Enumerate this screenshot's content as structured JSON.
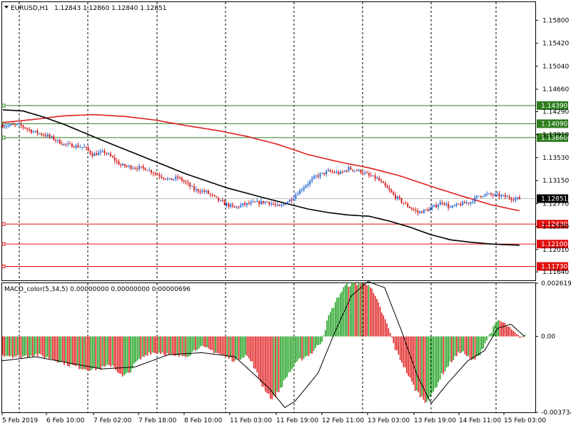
{
  "header": {
    "symbol": "EURUSD,H1",
    "ohlc": "1.12843 1.12860 1.12840 1.12851"
  },
  "macd": {
    "label": "MACD_color(5,34,5) 0.00000000 0.00000000 0.00000696"
  },
  "colors": {
    "bull": "#2a6bd6",
    "bear": "#d42020",
    "ma_fast": "#e02020",
    "ma_slow": "#000000",
    "level_green": "#2e7d1e",
    "level_red": "#e01010",
    "macd_up": "#20a020",
    "macd_down": "#e02020",
    "grid": "#000000"
  },
  "chart_data": [
    {
      "type": "candlestick",
      "title": "EURUSD,H1",
      "y_ticks": [
        "1.15800",
        "1.15420",
        "1.15040",
        "1.14660",
        "1.14290",
        "1.13910",
        "1.13530",
        "1.13150",
        "1.12770",
        "1.12390",
        "1.12010",
        "1.11640"
      ],
      "ylim": [
        1.115,
        1.161
      ],
      "x_ticks": [
        "5 Feb 2019",
        "6 Feb 10:00",
        "7 Feb 02:00",
        "7 Feb 18:00",
        "8 Feb 10:00",
        "11 Feb 03:00",
        "11 Feb 19:00",
        "12 Feb 11:00",
        "13 Feb 03:00",
        "13 Feb 19:00",
        "14 Feb 11:00",
        "15 Feb 03:00"
      ],
      "price_anchors": [
        [
          0,
          1.1406
        ],
        [
          8,
          1.1407
        ],
        [
          14,
          1.1397
        ],
        [
          22,
          1.1389
        ],
        [
          30,
          1.1375
        ],
        [
          40,
          1.137
        ],
        [
          44,
          1.1358
        ],
        [
          50,
          1.1362
        ],
        [
          54,
          1.1352
        ],
        [
          58,
          1.134
        ],
        [
          64,
          1.1337
        ],
        [
          70,
          1.1335
        ],
        [
          76,
          1.1325
        ],
        [
          82,
          1.1316
        ],
        [
          86,
          1.132
        ],
        [
          90,
          1.1311
        ],
        [
          94,
          1.13
        ],
        [
          100,
          1.1296
        ],
        [
          108,
          1.1278
        ],
        [
          114,
          1.127
        ],
        [
          118,
          1.1275
        ],
        [
          124,
          1.1278
        ],
        [
          130,
          1.128
        ],
        [
          136,
          1.1271
        ],
        [
          142,
          1.1285
        ],
        [
          148,
          1.1305
        ],
        [
          154,
          1.1322
        ],
        [
          160,
          1.133
        ],
        [
          166,
          1.1327
        ],
        [
          170,
          1.1335
        ],
        [
          176,
          1.133
        ],
        [
          180,
          1.1323
        ],
        [
          184,
          1.1318
        ],
        [
          188,
          1.1305
        ],
        [
          192,
          1.1291
        ],
        [
          198,
          1.1275
        ],
        [
          204,
          1.1262
        ],
        [
          210,
          1.1268
        ],
        [
          216,
          1.128
        ],
        [
          220,
          1.127
        ],
        [
          224,
          1.1275
        ],
        [
          230,
          1.128
        ],
        [
          234,
          1.129
        ],
        [
          238,
          1.1292
        ],
        [
          244,
          1.129
        ],
        [
          250,
          1.1286
        ],
        [
          254,
          1.1285
        ]
      ],
      "ma_slow": [
        [
          0,
          1.1432
        ],
        [
          10,
          1.143
        ],
        [
          20,
          1.142
        ],
        [
          30,
          1.1408
        ],
        [
          50,
          1.138
        ],
        [
          70,
          1.1353
        ],
        [
          90,
          1.1326
        ],
        [
          110,
          1.1303
        ],
        [
          130,
          1.1285
        ],
        [
          150,
          1.1268
        ],
        [
          160,
          1.1262
        ],
        [
          170,
          1.1258
        ],
        [
          180,
          1.1256
        ],
        [
          190,
          1.1248
        ],
        [
          200,
          1.1238
        ],
        [
          210,
          1.1226
        ],
        [
          220,
          1.1217
        ],
        [
          230,
          1.1213
        ],
        [
          240,
          1.121
        ],
        [
          254,
          1.1208
        ]
      ],
      "ma_fast": [
        [
          0,
          1.1411
        ],
        [
          15,
          1.1416
        ],
        [
          30,
          1.1422
        ],
        [
          45,
          1.1424
        ],
        [
          60,
          1.1421
        ],
        [
          75,
          1.1415
        ],
        [
          90,
          1.1406
        ],
        [
          105,
          1.1398
        ],
        [
          120,
          1.1388
        ],
        [
          135,
          1.1375
        ],
        [
          150,
          1.1358
        ],
        [
          165,
          1.1346
        ],
        [
          180,
          1.1336
        ],
        [
          195,
          1.1323
        ],
        [
          210,
          1.1306
        ],
        [
          225,
          1.129
        ],
        [
          240,
          1.1275
        ],
        [
          254,
          1.1265
        ]
      ],
      "levels": [
        {
          "value": 1.1439,
          "label": "1.14390",
          "kind": "green"
        },
        {
          "value": 1.1409,
          "label": "1.14090",
          "kind": "green"
        },
        {
          "value": 1.1386,
          "label": "1.13860",
          "kind": "green"
        },
        {
          "value": 1.1243,
          "label": "1.12430",
          "kind": "red"
        },
        {
          "value": 1.121,
          "label": "1.12100",
          "kind": "red"
        },
        {
          "value": 1.1173,
          "label": "1.11730",
          "kind": "red"
        }
      ],
      "current_price": {
        "value": 1.12851,
        "label": "1.12851"
      }
    },
    {
      "type": "bar",
      "title": "MACD_color(5,34,5)",
      "y_ticks": [
        "0.0026192",
        "0.00",
        "-0.0037341"
      ],
      "ylim": [
        -0.0037341,
        0.0026192
      ],
      "hist_anchors": [
        [
          0,
          -0.0009
        ],
        [
          10,
          -0.001
        ],
        [
          20,
          -0.0009
        ],
        [
          30,
          -0.0011
        ],
        [
          40,
          -0.0014
        ],
        [
          50,
          -0.0016
        ],
        [
          58,
          -0.0016
        ],
        [
          66,
          -0.0014
        ],
        [
          72,
          -0.002
        ],
        [
          76,
          -0.0018
        ],
        [
          80,
          -0.0013
        ],
        [
          88,
          -0.0008
        ],
        [
          96,
          -0.0008
        ],
        [
          104,
          -0.001
        ],
        [
          112,
          -0.0009
        ],
        [
          118,
          -0.0005
        ],
        [
          126,
          -0.0007
        ],
        [
          134,
          -0.001
        ],
        [
          140,
          -0.0012
        ],
        [
          146,
          -0.0009
        ],
        [
          150,
          -0.0013
        ],
        [
          156,
          -0.0024
        ],
        [
          162,
          -0.0031
        ],
        [
          166,
          -0.0027
        ],
        [
          172,
          -0.0018
        ],
        [
          178,
          -0.0012
        ],
        [
          186,
          -0.0008
        ],
        [
          192,
          -0.0002
        ],
        [
          196,
          0.001
        ],
        [
          202,
          0.002
        ],
        [
          206,
          0.0025
        ],
        [
          212,
          0.0026
        ],
        [
          220,
          0.0026
        ],
        [
          226,
          0.0016
        ],
        [
          232,
          0.0004
        ],
        [
          236,
          -0.0006
        ],
        [
          242,
          -0.0016
        ],
        [
          248,
          -0.0026
        ],
        [
          254,
          -0.0032
        ],
        [
          258,
          -0.0029
        ],
        [
          264,
          -0.0019
        ],
        [
          270,
          -0.0012
        ],
        [
          276,
          -0.0007
        ],
        [
          282,
          -0.0012
        ],
        [
          286,
          -0.001
        ],
        [
          292,
          0.0
        ],
        [
          298,
          0.0008
        ],
        [
          302,
          0.0006
        ],
        [
          306,
          0.0003
        ],
        [
          310,
          0.0
        ]
      ],
      "signal_anchors": [
        [
          0,
          -0.0012
        ],
        [
          20,
          -0.001
        ],
        [
          40,
          -0.0013
        ],
        [
          60,
          -0.0016
        ],
        [
          80,
          -0.0015
        ],
        [
          100,
          -0.0009
        ],
        [
          120,
          -0.0008
        ],
        [
          140,
          -0.001
        ],
        [
          160,
          -0.0025
        ],
        [
          170,
          -0.0035
        ],
        [
          176,
          -0.0032
        ],
        [
          190,
          -0.0018
        ],
        [
          200,
          0.0002
        ],
        [
          210,
          0.002
        ],
        [
          220,
          0.0027
        ],
        [
          230,
          0.0024
        ],
        [
          240,
          0.0003
        ],
        [
          250,
          -0.002
        ],
        [
          258,
          -0.0033
        ],
        [
          268,
          -0.0023
        ],
        [
          280,
          -0.0012
        ],
        [
          290,
          -0.0007
        ],
        [
          298,
          0.0004
        ],
        [
          306,
          0.0006
        ],
        [
          314,
          0.0
        ]
      ]
    }
  ]
}
